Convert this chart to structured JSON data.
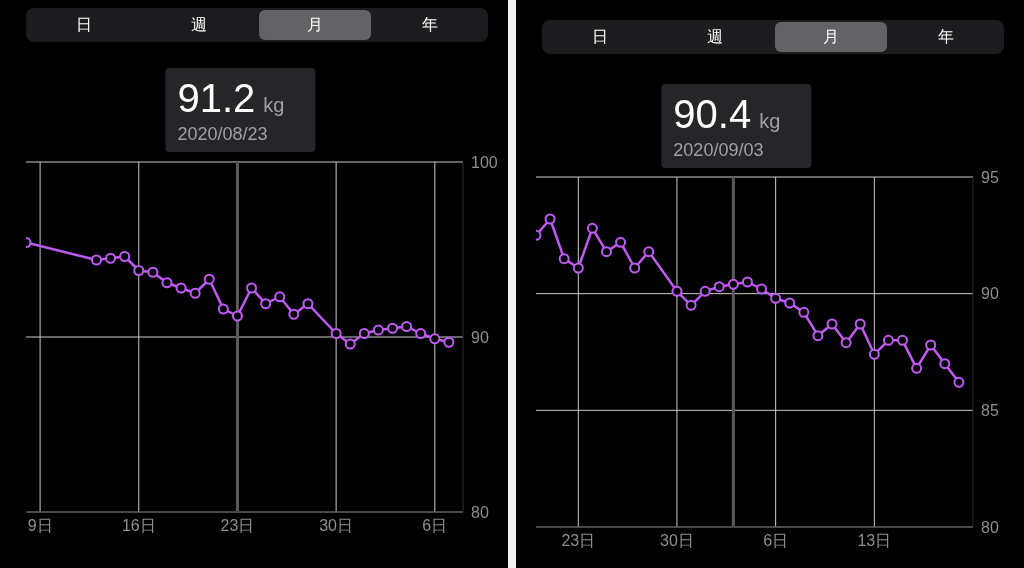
{
  "chart_data": [
    {
      "type": "line",
      "annotations": [
        "日",
        "週",
        "月",
        "年",
        "91.2 kg"
      ],
      "ref_lines": [
        {
          "axis": "x",
          "value": "2020-08-23",
          "label": "2020/08/23",
          "color": "#5a5a5e"
        }
      ],
      "x": [
        "2020-08-08",
        "2020-08-13",
        "2020-08-14",
        "2020-08-15",
        "2020-08-16",
        "2020-08-17",
        "2020-08-18",
        "2020-08-19",
        "2020-08-20",
        "2020-08-21",
        "2020-08-22",
        "2020-08-23",
        "2020-08-24",
        "2020-08-25",
        "2020-08-26",
        "2020-08-27",
        "2020-08-28",
        "2020-08-30",
        "2020-08-31",
        "2020-09-01",
        "2020-09-02",
        "2020-09-03",
        "2020-09-04",
        "2020-09-05",
        "2020-09-06",
        "2020-09-07"
      ],
      "series": [
        {
          "color": "#bf5af2",
          "values": [
            95.4,
            94.4,
            94.5,
            94.6,
            93.8,
            93.7,
            93.1,
            92.8,
            92.5,
            93.3,
            91.6,
            91.2,
            92.8,
            91.9,
            92.3,
            91.3,
            91.9,
            90.2,
            89.6,
            90.2,
            90.4,
            90.5,
            90.6,
            90.2,
            89.9,
            89.7
          ]
        }
      ],
      "xlim": [
        "2020-08-08",
        "2020-09-08"
      ],
      "xticks": [
        {
          "value": "2020-08-09",
          "label": "9日"
        },
        {
          "value": "2020-08-16",
          "label": "16日"
        },
        {
          "value": "2020-08-23",
          "label": "23日"
        },
        {
          "value": "2020-08-30",
          "label": "30日"
        },
        {
          "value": "2020-09-06",
          "label": "6日"
        }
      ],
      "ylim": [
        80,
        100
      ],
      "yticks": [
        80,
        90,
        100
      ],
      "grid": true,
      "marker": "circle",
      "line_style": "solid"
    },
    {
      "type": "line",
      "annotations": [
        "日",
        "週",
        "月",
        "年",
        "90.4 kg"
      ],
      "ref_lines": [
        {
          "axis": "x",
          "value": "2020-09-03",
          "label": "2020/09/03",
          "color": "#5a5a5e"
        }
      ],
      "x": [
        "2020-08-20",
        "2020-08-21",
        "2020-08-22",
        "2020-08-23",
        "2020-08-24",
        "2020-08-25",
        "2020-08-26",
        "2020-08-27",
        "2020-08-28",
        "2020-08-30",
        "2020-08-31",
        "2020-09-01",
        "2020-09-02",
        "2020-09-03",
        "2020-09-04",
        "2020-09-05",
        "2020-09-06",
        "2020-09-07",
        "2020-09-08",
        "2020-09-09",
        "2020-09-10",
        "2020-09-11",
        "2020-09-12",
        "2020-09-13",
        "2020-09-14",
        "2020-09-15",
        "2020-09-16",
        "2020-09-17",
        "2020-09-18",
        "2020-09-19"
      ],
      "series": [
        {
          "color": "#bf5af2",
          "values": [
            92.5,
            93.2,
            91.5,
            91.1,
            92.8,
            91.8,
            92.2,
            91.1,
            91.8,
            90.1,
            89.5,
            90.1,
            90.3,
            90.4,
            90.5,
            90.2,
            89.8,
            89.6,
            89.2,
            88.2,
            88.7,
            87.9,
            88.7,
            87.4,
            88.0,
            88.0,
            86.8,
            87.8,
            87.0,
            86.2
          ]
        }
      ],
      "xlim": [
        "2020-08-20",
        "2020-09-20"
      ],
      "xticks": [
        {
          "value": "2020-08-23",
          "label": "23日"
        },
        {
          "value": "2020-08-30",
          "label": "30日"
        },
        {
          "value": "2020-09-06",
          "label": "6日"
        },
        {
          "value": "2020-09-13",
          "label": "13日"
        }
      ],
      "ylim": [
        80,
        95
      ],
      "yticks": [
        80,
        85,
        90,
        95
      ],
      "grid": true,
      "marker": "circle",
      "line_style": "solid"
    }
  ]
}
